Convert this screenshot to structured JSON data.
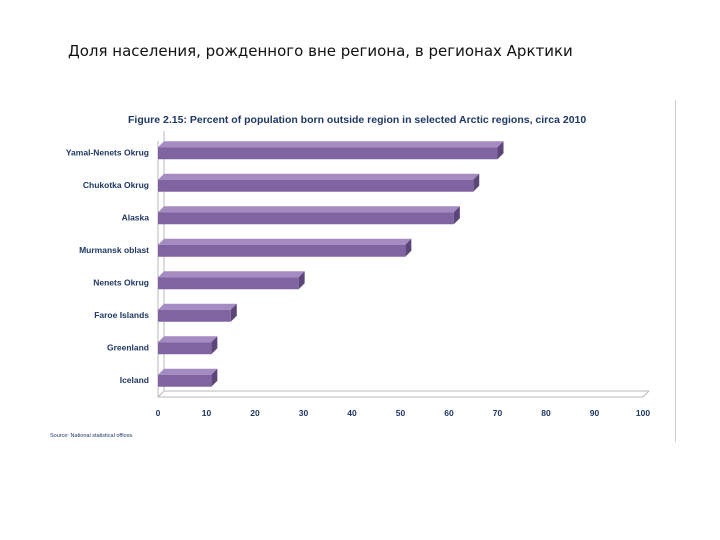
{
  "slide": {
    "title": "Доля населения, рожденного вне региона, в регионах Арктики"
  },
  "chart_data": {
    "type": "bar",
    "orientation": "horizontal",
    "style": "3d",
    "title": "Figure 2.15: Percent of population born outside region in selected Arctic regions, circa 2010",
    "categories": [
      "Yamal-Nenets Okrug",
      "Chukotka Okrug",
      "Alaska",
      "Murmansk oblast",
      "Nenets Okrug",
      "Faroe Islands",
      "Greenland",
      "Iceland"
    ],
    "values": [
      70,
      65,
      61,
      51,
      29,
      15,
      11,
      11
    ],
    "xlabel": "",
    "ylabel": "",
    "xlim": [
      0,
      100
    ],
    "xticks": [
      0,
      10,
      20,
      30,
      40,
      50,
      60,
      70,
      80,
      90,
      100
    ],
    "grid": false,
    "legend": "none",
    "source": "Source: National statistical offices.",
    "colors": {
      "bar_front": "#8064a2",
      "bar_top": "#a48cc2",
      "bar_side": "#5c4679",
      "text": "#1f3864",
      "axis": "#b8b8b8"
    }
  }
}
